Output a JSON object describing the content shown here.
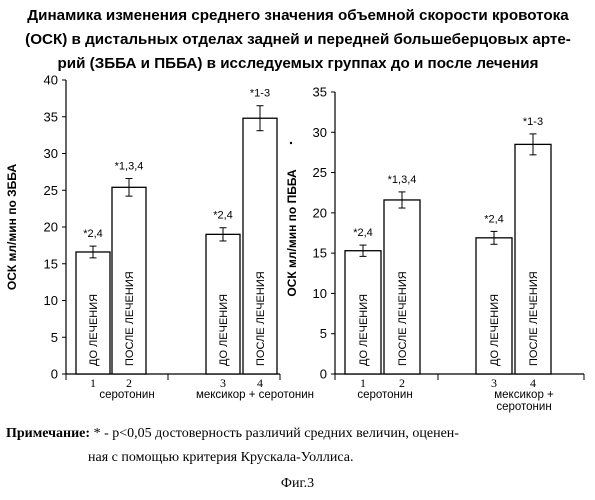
{
  "title_lines": [
    "Динамика изменения среднего значения объемной скорости кровотока",
    "(ОСК) в  дистальных отделах задней и передней большеберцовых арте-",
    "рий (ЗББА и ПББА) в исследуемых группах до и после лечения"
  ],
  "chart_data": [
    {
      "type": "bar",
      "ylabel": "ОСК мл/мин по ЗББА",
      "ylim": [
        0,
        40
      ],
      "yticks": [
        0,
        5,
        10,
        15,
        20,
        25,
        30,
        35,
        40
      ],
      "bar_inner_labels": [
        "ДО ЛЕЧЕНИЯ",
        "ПОСЛЕ ЛЕЧЕНИЯ",
        "ДО ЛЕЧЕНИЯ",
        "ПОСЛЕ ЛЕЧЕНИЯ"
      ],
      "bar_numbers": [
        "1",
        "2",
        "3",
        "4"
      ],
      "values": [
        16.6,
        25.4,
        19.0,
        34.8
      ],
      "errors": [
        0.8,
        1.2,
        0.9,
        1.7
      ],
      "annotations": [
        "*2,4",
        "*1,3,4",
        "*2,4",
        "*1-3"
      ],
      "groups": [
        "серотонин",
        "мексикор + серотонин"
      ]
    },
    {
      "type": "bar",
      "ylabel": "ОСК мл/мин по ПББА",
      "ylim": [
        0,
        35
      ],
      "yticks": [
        0,
        5,
        10,
        15,
        20,
        25,
        30,
        35
      ],
      "bar_inner_labels": [
        "ДО ЛЕЧЕНИЯ",
        "ПОСЛЕ ЛЕЧЕНИЯ",
        "ДО ЛЕЧЕНИЯ",
        "ПОСЛЕ ЛЕЧЕНИЯ"
      ],
      "bar_numbers": [
        "1",
        "2",
        "3",
        "4"
      ],
      "values": [
        15.3,
        21.6,
        16.9,
        28.5
      ],
      "errors": [
        0.7,
        1.0,
        0.8,
        1.3
      ],
      "annotations": [
        "*2,4",
        "*1,3,4",
        "*2,4",
        "*1-3"
      ],
      "groups": [
        "серотонин",
        "мексикор +\nсеротонин"
      ]
    }
  ],
  "note": {
    "label": "Примечание:",
    "line1": " * - p<0,05 достоверность различий средних величин, оценен-",
    "line2": "ная с помощью критерия Крускала-Уоллиса."
  },
  "figure_caption": "Фиг.3"
}
